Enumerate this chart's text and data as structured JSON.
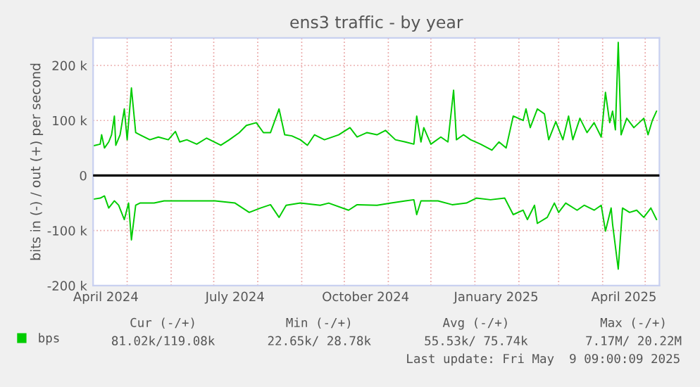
{
  "chart_data": {
    "type": "line",
    "title": "ens3 traffic - by year",
    "ylabel": "bits in (-) / out (+) per second",
    "series": [
      {
        "name": "bps",
        "color": "#00cc00",
        "x": [
          "2024-04-07",
          "2024-04-12",
          "2024-04-13",
          "2024-04-15",
          "2024-04-18",
          "2024-04-20",
          "2024-04-22",
          "2024-04-23",
          "2024-04-26",
          "2024-04-29",
          "2024-05-01",
          "2024-05-04",
          "2024-05-07",
          "2024-05-10",
          "2024-05-17",
          "2024-05-23",
          "2024-05-30",
          "2024-06-04",
          "2024-06-07",
          "2024-06-12",
          "2024-06-19",
          "2024-06-26",
          "2024-07-06",
          "2024-07-12",
          "2024-07-19",
          "2024-07-24",
          "2024-07-31",
          "2024-08-05",
          "2024-08-10",
          "2024-08-16",
          "2024-08-20",
          "2024-08-25",
          "2024-08-31",
          "2024-09-05",
          "2024-09-10",
          "2024-09-17",
          "2024-09-27",
          "2024-10-05",
          "2024-10-10",
          "2024-10-17",
          "2024-10-24",
          "2024-10-30",
          "2024-11-06",
          "2024-11-13",
          "2024-11-19",
          "2024-11-21",
          "2024-11-24",
          "2024-11-26",
          "2024-12-01",
          "2024-12-08",
          "2024-12-13",
          "2024-12-17",
          "2024-12-19",
          "2024-12-24",
          "2024-12-29",
          "2025-01-05",
          "2025-01-13",
          "2025-01-18",
          "2025-01-23",
          "2025-01-28",
          "2025-02-04",
          "2025-02-06",
          "2025-02-09",
          "2025-02-14",
          "2025-02-19",
          "2025-02-22",
          "2025-02-27",
          "2025-03-04",
          "2025-03-08",
          "2025-03-11",
          "2025-03-16",
          "2025-03-21",
          "2025-03-26",
          "2025-03-31",
          "2025-04-03",
          "2025-04-06",
          "2025-04-08",
          "2025-04-10",
          "2025-04-12",
          "2025-04-14",
          "2025-04-18",
          "2025-04-23",
          "2025-04-30",
          "2025-05-03",
          "2025-05-06",
          "2025-05-09"
        ],
        "values": [
          54000,
          57000,
          74000,
          50000,
          61000,
          74000,
          108000,
          55000,
          74000,
          121000,
          65000,
          159000,
          78000,
          74000,
          65000,
          70000,
          65000,
          80000,
          61000,
          65000,
          57000,
          68000,
          55000,
          65000,
          78000,
          91000,
          96000,
          78000,
          78000,
          121000,
          74000,
          72000,
          65000,
          55000,
          74000,
          65000,
          74000,
          87000,
          70000,
          78000,
          74000,
          82000,
          65000,
          61000,
          57000,
          108000,
          61000,
          87000,
          57000,
          70000,
          61000,
          155000,
          65000,
          74000,
          65000,
          57000,
          46000,
          61000,
          50000,
          108000,
          100000,
          121000,
          87000,
          121000,
          112000,
          65000,
          98000,
          65000,
          108000,
          65000,
          104000,
          78000,
          96000,
          70000,
          151000,
          96000,
          117000,
          83000,
          242000,
          74000,
          104000,
          87000,
          104000,
          74000,
          100000,
          117000
        ]
      },
      {
        "color": "#00cc00",
        "x": [
          "2024-04-07",
          "2024-04-12",
          "2024-04-15",
          "2024-04-18",
          "2024-04-22",
          "2024-04-25",
          "2024-04-29",
          "2024-05-02",
          "2024-05-04",
          "2024-05-07",
          "2024-05-10",
          "2024-05-20",
          "2024-05-27",
          "2024-06-06",
          "2024-06-19",
          "2024-07-02",
          "2024-07-16",
          "2024-07-26",
          "2024-08-03",
          "2024-08-10",
          "2024-08-16",
          "2024-08-21",
          "2024-08-31",
          "2024-09-14",
          "2024-09-20",
          "2024-10-04",
          "2024-10-10",
          "2024-10-24",
          "2024-11-03",
          "2024-11-13",
          "2024-11-19",
          "2024-11-21",
          "2024-11-24",
          "2024-12-06",
          "2024-12-16",
          "2024-12-26",
          "2025-01-02",
          "2025-01-12",
          "2025-01-22",
          "2025-01-28",
          "2025-02-04",
          "2025-02-07",
          "2025-02-12",
          "2025-02-14",
          "2025-02-21",
          "2025-02-26",
          "2025-03-01",
          "2025-03-06",
          "2025-03-14",
          "2025-03-19",
          "2025-03-26",
          "2025-03-31",
          "2025-04-03",
          "2025-04-07",
          "2025-04-08",
          "2025-04-12",
          "2025-04-15",
          "2025-04-20",
          "2025-04-25",
          "2025-04-30",
          "2025-05-05",
          "2025-05-09"
        ],
        "values": [
          -43000,
          -41000,
          -37000,
          -59000,
          -46000,
          -54000,
          -80000,
          -50000,
          -117000,
          -54000,
          -50000,
          -50000,
          -46000,
          -46000,
          -46000,
          -46000,
          -50000,
          -67000,
          -59000,
          -53000,
          -76000,
          -54000,
          -50000,
          -54000,
          -50000,
          -63000,
          -53000,
          -54000,
          -50000,
          -46000,
          -44000,
          -71000,
          -46000,
          -46000,
          -53000,
          -50000,
          -41000,
          -44000,
          -41000,
          -71000,
          -63000,
          -80000,
          -54000,
          -87000,
          -76000,
          -50000,
          -67000,
          -50000,
          -63000,
          -54000,
          -63000,
          -54000,
          -101000,
          -59000,
          -88000,
          -170000,
          -59000,
          -67000,
          -63000,
          -76000,
          -59000,
          -80000
        ]
      }
    ],
    "xlim": [
      "2024-04-07",
      "2025-05-11"
    ],
    "xticks": [
      {
        "value": "2024-04-16",
        "label": "April 2024"
      },
      {
        "value": "2024-07-16",
        "label": "July 2024"
      },
      {
        "value": "2024-10-16",
        "label": "October 2024"
      },
      {
        "value": "2025-01-16",
        "label": "January 2025"
      },
      {
        "value": "2025-04-16",
        "label": "April 2025"
      },
      {
        "value": "2024-05-01",
        "label": null
      },
      {
        "value": "2024-06-01",
        "label": null
      },
      {
        "value": "2024-07-01",
        "label": null
      },
      {
        "value": "2024-08-01",
        "label": null
      },
      {
        "value": "2024-09-01",
        "label": null
      },
      {
        "value": "2024-10-01",
        "label": null
      },
      {
        "value": "2024-11-01",
        "label": null
      },
      {
        "value": "2024-12-01",
        "label": null
      },
      {
        "value": "2025-01-01",
        "label": null
      },
      {
        "value": "2025-02-01",
        "label": null
      },
      {
        "value": "2025-03-01",
        "label": null
      },
      {
        "value": "2025-04-01",
        "label": null
      },
      {
        "value": "2025-05-01",
        "label": null
      }
    ],
    "ylim": [
      -200000,
      250000
    ],
    "yticks": [
      {
        "value": -200000,
        "label": "-200 k"
      },
      {
        "value": -100000,
        "label": "-100 k"
      },
      0,
      {
        "value": 100000,
        "label": "100 k"
      },
      {
        "value": 200000,
        "label": "200 k"
      }
    ],
    "ref_lines": [
      {
        "axis": "y",
        "value": 0,
        "color": "#000000"
      }
    ],
    "grid": true,
    "legend": "bottom left",
    "annotations": [
      "Cur (-/+)",
      "Min (-/+)",
      "Avg (-/+)",
      "Max (-/+)",
      "81.02k/119.08k",
      "22.65k/ 28.78k",
      "55.53k/ 75.74k",
      "7.17M/ 20.22M",
      "Last update: Fri May  9 09:00:09 2025"
    ]
  }
}
